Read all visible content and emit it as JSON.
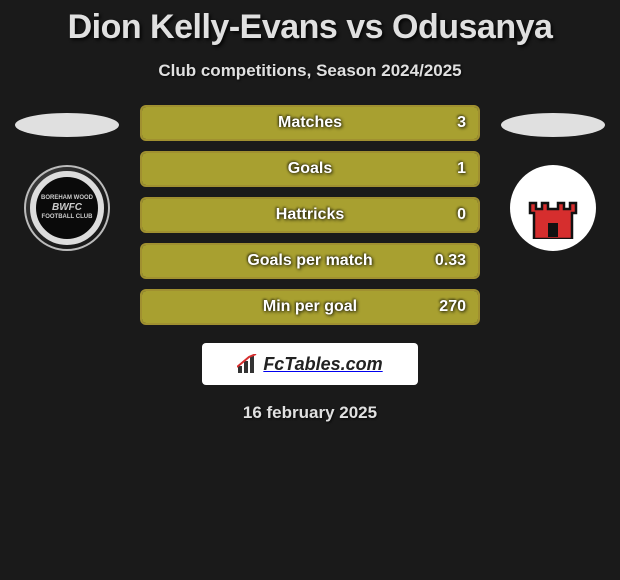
{
  "title": "Dion Kelly-Evans vs Odusanya",
  "subtitle": "Club competitions, Season 2024/2025",
  "date": "16 february 2025",
  "footer_brand": "FcTables.com",
  "colors": {
    "bar_fill": "#a8a030",
    "bar_border": "#a09030",
    "bar_bg": "#2a2a2a",
    "page_bg": "#1a1a1a",
    "text": "#e0e0e0",
    "oval": "#e0e0e0",
    "right_badge_bg": "#ffffff",
    "right_badge_red": "#d62e2e"
  },
  "left_badge": {
    "name": "boreham-wood-fc",
    "top_text": "BOREHAM WOOD",
    "center_text": "BWFC",
    "bottom_text": "FOOTBALL CLUB"
  },
  "right_badge": {
    "name": "tower-club"
  },
  "stats": [
    {
      "label": "Matches",
      "value": "3",
      "fill_pct": 100
    },
    {
      "label": "Goals",
      "value": "1",
      "fill_pct": 100
    },
    {
      "label": "Hattricks",
      "value": "0",
      "fill_pct": 100
    },
    {
      "label": "Goals per match",
      "value": "0.33",
      "fill_pct": 100
    },
    {
      "label": "Min per goal",
      "value": "270",
      "fill_pct": 100
    }
  ]
}
